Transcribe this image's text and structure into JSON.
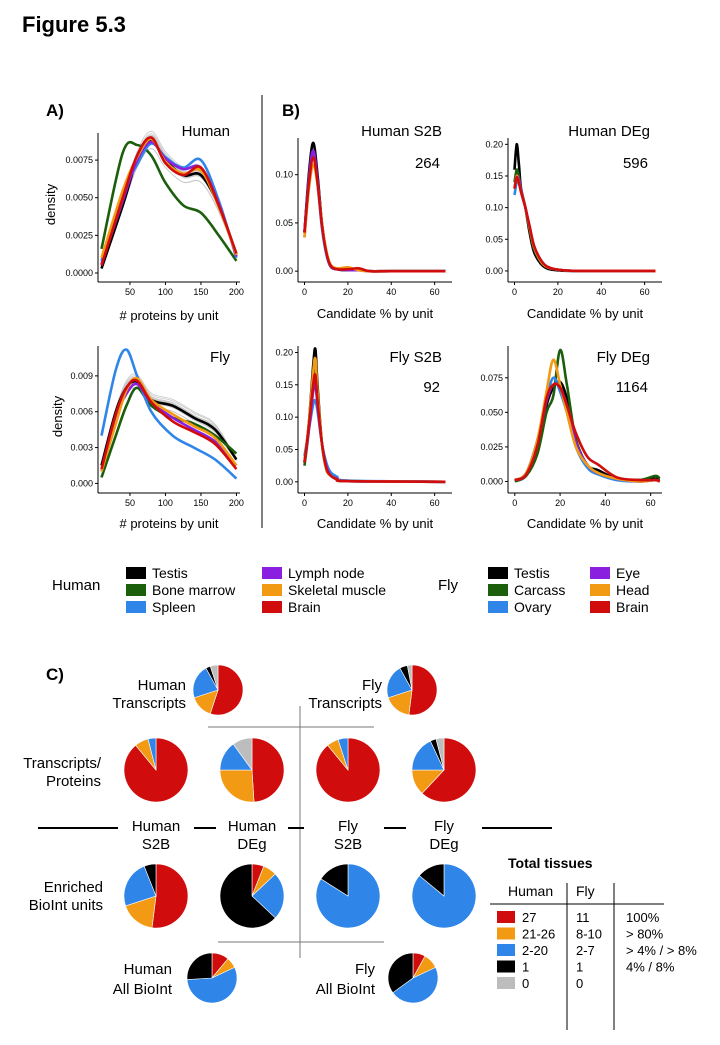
{
  "figure_title": "Figure 5.3",
  "panel_labels": {
    "a": "A)",
    "b": "B)",
    "c": "C)"
  },
  "colors": {
    "human": {
      "Testis": "#000000",
      "Bone marrow": "#1b5e0c",
      "Spleen": "#2f86e8",
      "Lymph node": "#8a1fe0",
      "Skeletal muscle": "#f39a14",
      "Brain": "#d10c0c"
    },
    "fly": {
      "Testis": "#000000",
      "Carcass": "#1b5e0c",
      "Ovary": "#2f86e8",
      "Eye": "#8a1fe0",
      "Head": "#f39a14",
      "Brain": "#d10c0c"
    },
    "grey_lines": "#c8c8c8",
    "pie": {
      "27": "#d10c0c",
      "21-26": "#f39a14",
      "2-20": "#2f86e8",
      "1": "#000000",
      "0": "#bdbdbd"
    }
  },
  "legend": {
    "human_title": "Human",
    "human_items": [
      "Testis",
      "Bone marrow",
      "Spleen",
      "Lymph node",
      "Skeletal muscle",
      "Brain"
    ],
    "fly_title": "Fly",
    "fly_items": [
      "Testis",
      "Carcass",
      "Ovary",
      "Eye",
      "Head",
      "Brain"
    ]
  },
  "chart_data": [
    {
      "id": "human-density",
      "type": "line",
      "title": "Human",
      "xlabel": "# proteins by unit",
      "ylabel": "density",
      "xlim": [
        5,
        205
      ],
      "ylim": [
        -0.0002,
        0.0093
      ],
      "xticks": [
        50,
        100,
        150,
        200
      ],
      "yticks": [
        0.0,
        0.0025,
        0.005,
        0.0075
      ],
      "ytick_labels": [
        "0.0000",
        "0.0025",
        "0.0050",
        "0.0075"
      ],
      "x": [
        10,
        40,
        60,
        80,
        100,
        125,
        150,
        175,
        200
      ],
      "grey_series_count": 15,
      "series": [
        {
          "name": "Testis",
          "values": [
            0.0003,
            0.0045,
            0.0075,
            0.0088,
            0.0075,
            0.0065,
            0.0065,
            0.0045,
            0.0012
          ]
        },
        {
          "name": "Bone marrow",
          "values": [
            0.0016,
            0.008,
            0.0085,
            0.0078,
            0.006,
            0.0045,
            0.004,
            0.0025,
            0.0008
          ]
        },
        {
          "name": "Spleen",
          "values": [
            0.0008,
            0.0052,
            0.0072,
            0.0086,
            0.0077,
            0.007,
            0.0075,
            0.0048,
            0.001
          ]
        },
        {
          "name": "Lymph node",
          "values": [
            0.0006,
            0.0048,
            0.0075,
            0.0087,
            0.0076,
            0.0069,
            0.007,
            0.0046,
            0.0011
          ]
        },
        {
          "name": "Skeletal muscle",
          "values": [
            0.001,
            0.0055,
            0.0077,
            0.0089,
            0.0074,
            0.0066,
            0.0068,
            0.0044,
            0.0012
          ]
        },
        {
          "name": "Brain",
          "values": [
            0.0005,
            0.005,
            0.0078,
            0.009,
            0.0073,
            0.0065,
            0.007,
            0.0045,
            0.0013
          ]
        }
      ]
    },
    {
      "id": "fly-density",
      "type": "line",
      "title": "Fly",
      "xlabel": "# proteins by unit",
      "ylabel": "density",
      "xlim": [
        5,
        205
      ],
      "ylim": [
        -0.0003,
        0.0115
      ],
      "xticks": [
        50,
        100,
        150,
        200
      ],
      "yticks": [
        0.0,
        0.003,
        0.006,
        0.009
      ],
      "ytick_labels": [
        "0.000",
        "0.003",
        "0.006",
        "0.009"
      ],
      "x": [
        10,
        30,
        45,
        60,
        80,
        110,
        140,
        170,
        200
      ],
      "grey_series_count": 15,
      "series": [
        {
          "name": "Testis",
          "values": [
            0.0015,
            0.006,
            0.008,
            0.0085,
            0.007,
            0.0065,
            0.0055,
            0.0045,
            0.002
          ]
        },
        {
          "name": "Carcass",
          "values": [
            0.0005,
            0.004,
            0.0065,
            0.008,
            0.0065,
            0.0055,
            0.005,
            0.004,
            0.0025
          ]
        },
        {
          "name": "Ovary",
          "values": [
            0.004,
            0.0095,
            0.0112,
            0.009,
            0.006,
            0.004,
            0.003,
            0.002,
            0.0004
          ]
        },
        {
          "name": "Eye",
          "values": [
            0.001,
            0.0055,
            0.0075,
            0.0083,
            0.0068,
            0.0055,
            0.0045,
            0.0035,
            0.0015
          ]
        },
        {
          "name": "Head",
          "values": [
            0.001,
            0.005,
            0.0078,
            0.0088,
            0.007,
            0.0058,
            0.0048,
            0.0038,
            0.0015
          ]
        },
        {
          "name": "Brain",
          "values": [
            0.0012,
            0.0058,
            0.008,
            0.0086,
            0.0068,
            0.0052,
            0.0043,
            0.0033,
            0.0012
          ]
        }
      ]
    },
    {
      "id": "human-s2b",
      "type": "line",
      "title": "Human S2B",
      "annotation": "264",
      "xlabel": "Candidate % by unit",
      "ylabel": "",
      "xlim": [
        -3,
        68
      ],
      "ylim": [
        -0.005,
        0.138
      ],
      "xticks": [
        0,
        20,
        40,
        60
      ],
      "yticks": [
        0.0,
        0.05,
        0.1
      ],
      "ytick_labels": [
        "0.00",
        "0.05",
        "0.10"
      ],
      "x": [
        0,
        2,
        4,
        6,
        8,
        10,
        12,
        15,
        20,
        25,
        30,
        40,
        65
      ],
      "series": [
        {
          "name": "Testis",
          "values": [
            0.04,
            0.1,
            0.133,
            0.1,
            0.05,
            0.02,
            0.005,
            0.002,
            0.001,
            0.002,
            0.0,
            0.0,
            0.0
          ]
        },
        {
          "name": "Bone marrow",
          "values": [
            0.04,
            0.095,
            0.12,
            0.095,
            0.05,
            0.02,
            0.006,
            0.002,
            0.001,
            0.001,
            0.0,
            0.0,
            0.0
          ]
        },
        {
          "name": "Spleen",
          "values": [
            0.035,
            0.09,
            0.12,
            0.09,
            0.045,
            0.018,
            0.005,
            0.002,
            0.002,
            0.001,
            0.0,
            0.0,
            0.0
          ]
        },
        {
          "name": "Lymph node",
          "values": [
            0.04,
            0.095,
            0.125,
            0.095,
            0.048,
            0.02,
            0.005,
            0.002,
            0.001,
            0.001,
            0.0,
            0.0,
            0.0
          ]
        },
        {
          "name": "Skeletal muscle",
          "values": [
            0.035,
            0.085,
            0.11,
            0.09,
            0.05,
            0.022,
            0.007,
            0.003,
            0.004,
            0.001,
            0.0,
            0.0,
            0.0
          ]
        },
        {
          "name": "Brain",
          "values": [
            0.04,
            0.09,
            0.118,
            0.092,
            0.048,
            0.02,
            0.006,
            0.002,
            0.002,
            0.003,
            0.0,
            0.0,
            0.0
          ]
        }
      ]
    },
    {
      "id": "human-deg",
      "type": "line",
      "title": "Human DEg",
      "annotation": "596",
      "xlabel": "Candidate % by unit",
      "ylabel": "",
      "xlim": [
        -3,
        68
      ],
      "ylim": [
        -0.008,
        0.21
      ],
      "xticks": [
        0,
        20,
        40,
        60
      ],
      "yticks": [
        0.0,
        0.05,
        0.1,
        0.15,
        0.2
      ],
      "ytick_labels": [
        "0.00",
        "0.05",
        "0.10",
        "0.15",
        "0.20"
      ],
      "x": [
        0,
        1,
        2,
        3,
        5,
        7,
        9,
        12,
        15,
        20,
        30,
        65
      ],
      "series": [
        {
          "name": "Testis",
          "values": [
            0.16,
            0.2,
            0.17,
            0.13,
            0.1,
            0.06,
            0.03,
            0.012,
            0.004,
            0.001,
            0.0,
            0.0
          ]
        },
        {
          "name": "Bone marrow",
          "values": [
            0.14,
            0.16,
            0.15,
            0.13,
            0.1,
            0.065,
            0.035,
            0.015,
            0.006,
            0.002,
            0.0,
            0.0
          ]
        },
        {
          "name": "Spleen",
          "values": [
            0.12,
            0.14,
            0.14,
            0.125,
            0.1,
            0.07,
            0.04,
            0.018,
            0.007,
            0.002,
            0.0,
            0.0
          ]
        },
        {
          "name": "Lymph node",
          "values": [
            0.13,
            0.15,
            0.145,
            0.128,
            0.1,
            0.068,
            0.038,
            0.016,
            0.006,
            0.002,
            0.0,
            0.0
          ]
        },
        {
          "name": "Skeletal muscle",
          "values": [
            0.13,
            0.15,
            0.14,
            0.125,
            0.1,
            0.068,
            0.038,
            0.016,
            0.006,
            0.002,
            0.0,
            0.0
          ]
        },
        {
          "name": "Brain",
          "values": [
            0.13,
            0.148,
            0.14,
            0.125,
            0.1,
            0.07,
            0.04,
            0.018,
            0.007,
            0.002,
            0.0,
            0.0
          ]
        }
      ]
    },
    {
      "id": "fly-s2b",
      "type": "line",
      "title": "Fly S2B",
      "annotation": "92",
      "xlabel": "Candidate % by unit",
      "ylabel": "",
      "xlim": [
        -3,
        68
      ],
      "ylim": [
        -0.008,
        0.21
      ],
      "xticks": [
        0,
        20,
        40,
        60
      ],
      "yticks": [
        0.0,
        0.05,
        0.1,
        0.15,
        0.2
      ],
      "ytick_labels": [
        "0.00",
        "0.05",
        "0.10",
        "0.15",
        "0.20"
      ],
      "x": [
        0,
        2,
        4,
        5,
        6,
        8,
        10,
        12,
        15,
        20,
        65
      ],
      "series": [
        {
          "name": "Testis",
          "values": [
            0.03,
            0.09,
            0.18,
            0.205,
            0.15,
            0.06,
            0.02,
            0.01,
            0.004,
            0.001,
            0.0
          ]
        },
        {
          "name": "Carcass",
          "values": [
            0.025,
            0.08,
            0.16,
            0.17,
            0.13,
            0.06,
            0.025,
            0.01,
            0.004,
            0.001,
            0.0
          ]
        },
        {
          "name": "Ovary",
          "values": [
            0.04,
            0.08,
            0.12,
            0.125,
            0.11,
            0.06,
            0.03,
            0.015,
            0.008,
            0.002,
            0.0
          ]
        },
        {
          "name": "Eye",
          "values": [
            0.03,
            0.08,
            0.14,
            0.15,
            0.12,
            0.06,
            0.025,
            0.01,
            0.005,
            0.001,
            0.0
          ]
        },
        {
          "name": "Head",
          "values": [
            0.03,
            0.09,
            0.17,
            0.19,
            0.14,
            0.06,
            0.02,
            0.01,
            0.004,
            0.001,
            0.0
          ]
        },
        {
          "name": "Brain",
          "values": [
            0.03,
            0.085,
            0.15,
            0.165,
            0.125,
            0.06,
            0.022,
            0.01,
            0.004,
            0.001,
            0.0
          ]
        }
      ]
    },
    {
      "id": "fly-deg",
      "type": "line",
      "title": "Fly DEg",
      "annotation": "1164",
      "xlabel": "Candidate % by unit",
      "ylabel": "",
      "xlim": [
        -3,
        65
      ],
      "ylim": [
        -0.004,
        0.098
      ],
      "xticks": [
        0,
        20,
        40,
        60
      ],
      "yticks": [
        0.0,
        0.025,
        0.05,
        0.075
      ],
      "ytick_labels": [
        "0.000",
        "0.025",
        "0.050",
        "0.075"
      ],
      "x": [
        0,
        5,
        10,
        14,
        17,
        20,
        23,
        27,
        32,
        37,
        45,
        55,
        62,
        64
      ],
      "series": [
        {
          "name": "Testis",
          "values": [
            0.001,
            0.005,
            0.025,
            0.055,
            0.068,
            0.072,
            0.06,
            0.03,
            0.012,
            0.008,
            0.002,
            0.001,
            0.002,
            0.001
          ]
        },
        {
          "name": "Carcass",
          "values": [
            0.0,
            0.004,
            0.02,
            0.05,
            0.062,
            0.095,
            0.07,
            0.03,
            0.012,
            0.006,
            0.002,
            0.001,
            0.004,
            0.002
          ]
        },
        {
          "name": "Ovary",
          "values": [
            0.001,
            0.006,
            0.03,
            0.06,
            0.075,
            0.065,
            0.05,
            0.025,
            0.01,
            0.005,
            0.001,
            0.0,
            0.001,
            0.0
          ]
        },
        {
          "name": "Eye",
          "values": [
            0.001,
            0.005,
            0.028,
            0.058,
            0.07,
            0.068,
            0.055,
            0.028,
            0.012,
            0.006,
            0.002,
            0.0,
            0.001,
            0.0
          ]
        },
        {
          "name": "Head",
          "values": [
            0.001,
            0.006,
            0.03,
            0.065,
            0.088,
            0.07,
            0.05,
            0.025,
            0.012,
            0.006,
            0.002,
            0.0,
            0.001,
            0.0
          ]
        },
        {
          "name": "Brain",
          "values": [
            0.001,
            0.005,
            0.026,
            0.06,
            0.07,
            0.068,
            0.055,
            0.035,
            0.018,
            0.012,
            0.003,
            0.001,
            0.001,
            0.0
          ]
        }
      ]
    },
    {
      "id": "pies",
      "type": "pie",
      "categories": [
        "27",
        "21-26",
        "2-20",
        "1",
        "0"
      ],
      "pies": [
        {
          "id": "human-transcripts",
          "label": "Human\nTranscripts",
          "values": [
            55,
            15,
            22,
            3,
            5
          ]
        },
        {
          "id": "fly-transcripts",
          "label": "Fly\nTranscripts",
          "values": [
            52,
            18,
            22,
            5,
            3
          ]
        },
        {
          "id": "tp-human-s2b",
          "values": [
            89,
            7,
            4,
            0,
            0
          ]
        },
        {
          "id": "tp-human-deg",
          "values": [
            49,
            26,
            15,
            0,
            10
          ]
        },
        {
          "id": "tp-fly-s2b",
          "values": [
            89,
            6,
            5,
            0,
            0
          ]
        },
        {
          "id": "tp-fly-deg",
          "values": [
            62,
            13,
            18,
            3,
            4
          ]
        },
        {
          "id": "en-human-s2b",
          "values": [
            52,
            18,
            24,
            6,
            0
          ]
        },
        {
          "id": "en-human-deg",
          "values": [
            6,
            7,
            24,
            63,
            0
          ]
        },
        {
          "id": "en-fly-s2b",
          "values": [
            0,
            0,
            84,
            16,
            0
          ]
        },
        {
          "id": "en-fly-deg",
          "values": [
            0,
            0,
            86,
            14,
            0
          ]
        },
        {
          "id": "human-all-bioint",
          "label": "Human\nAll BioInt",
          "values": [
            11,
            7,
            56,
            26,
            0
          ]
        },
        {
          "id": "fly-all-bioint",
          "label": "Fly\nAll BioInt",
          "values": [
            8,
            10,
            47,
            35,
            0
          ]
        }
      ]
    }
  ],
  "panel_c": {
    "row_labels": {
      "transcripts_proteins": "Transcripts/\nProteins",
      "enriched": "Enriched\nBioInt units"
    },
    "column_headers": [
      "Human\nS2B",
      "Human\nDEg",
      "Fly\nS2B",
      "Fly\nDEg"
    ]
  },
  "total_tissues": {
    "title": "Total tissues",
    "header_human": "Human",
    "header_fly": "Fly",
    "rows": [
      {
        "human": "27",
        "fly": "11",
        "pct": "100%"
      },
      {
        "human": "21-26",
        "fly": "8-10",
        "pct": "> 80%"
      },
      {
        "human": "2-20",
        "fly": "2-7",
        "pct": "> 4% / > 8%"
      },
      {
        "human": "1",
        "fly": "1",
        "pct": "4% / 8%"
      },
      {
        "human": "0",
        "fly": "0",
        "pct": ""
      }
    ]
  }
}
